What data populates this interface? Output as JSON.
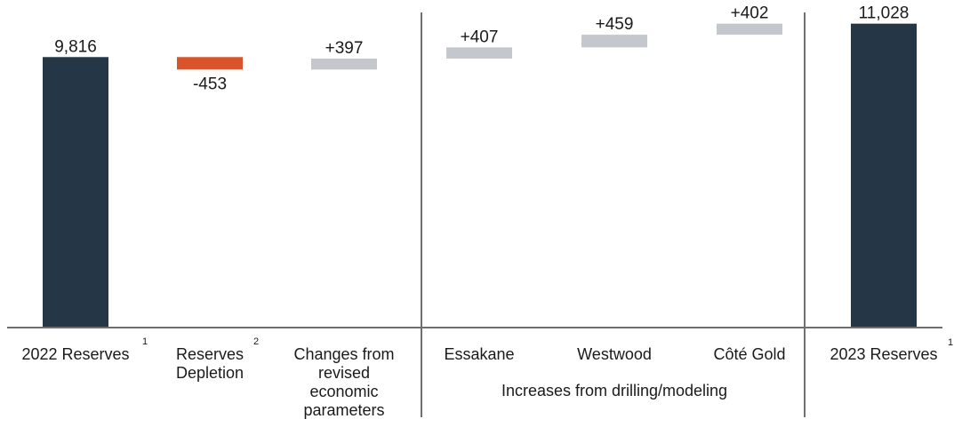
{
  "chart_data": {
    "type": "bar",
    "subtype": "waterfall",
    "categories": [
      "2022 Reserves",
      "Reserves Depletion",
      "Changes from revised economic parameters",
      "Essakane",
      "Westwood",
      "Côté Gold",
      "2023 Reserves"
    ],
    "category_lines": [
      [
        "2022 Reserves"
      ],
      [
        "Reserves",
        "Depletion"
      ],
      [
        "Changes from",
        "revised",
        "economic",
        "parameters"
      ],
      [
        "Essakane"
      ],
      [
        "Westwood"
      ],
      [
        "Côté Gold"
      ],
      [
        "2023 Reserves"
      ]
    ],
    "footnotes": [
      "1",
      "2",
      "",
      "",
      "",
      "",
      "1"
    ],
    "values": [
      9816,
      -453,
      397,
      407,
      459,
      402,
      11028
    ],
    "value_labels": [
      "9,816",
      "-453",
      "+397",
      "+407",
      "+459",
      "+402",
      "11,028"
    ],
    "bar_kinds": [
      "total",
      "decrease",
      "increase",
      "increase",
      "increase",
      "increase",
      "total"
    ],
    "group_label": "Increases from drilling/modeling",
    "group_members": [
      "Essakane",
      "Westwood",
      "Côté Gold"
    ],
    "ylim": [
      0,
      11500
    ],
    "grid": false,
    "colors": {
      "total": "#253746",
      "decrease": "#d9532b",
      "increase": "#c4c7cb",
      "axis": "#6e6e6e",
      "divider": "#707070"
    }
  }
}
